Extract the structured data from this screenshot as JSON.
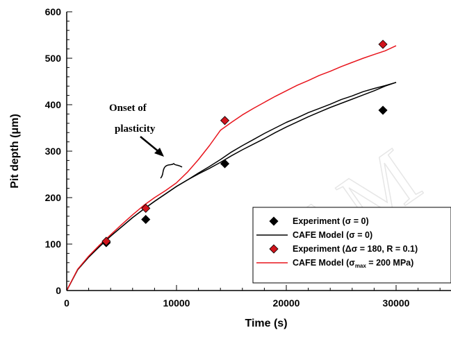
{
  "chart_data": {
    "type": "line",
    "xlabel": "Time  (s)",
    "ylabel": "Pit depth (μm)",
    "xlim": [
      0,
      35000
    ],
    "ylim": [
      0,
      600
    ],
    "x_ticks": [
      0,
      10000,
      20000,
      30000
    ],
    "x_tick_labels": [
      "0",
      "10000",
      "20000",
      "30000"
    ],
    "y_ticks": [
      0,
      100,
      200,
      300,
      400,
      500,
      600
    ],
    "y_tick_labels": [
      "0",
      "100",
      "200",
      "300",
      "400",
      "500",
      "600"
    ],
    "grid": false,
    "legend_position": "bottom-right",
    "annotation": {
      "line1": "Onset of",
      "line2": "plasticity",
      "points_to_x": 10000
    },
    "colors": {
      "black": "#000000",
      "red": "#e8141c",
      "marker_red": "#d0141c"
    },
    "series": [
      {
        "name": "Experiment (σ = 0)",
        "legend_parts": [
          [
            "Experiment (",
            ""
          ],
          [
            "σ",
            ""
          ],
          [
            " = 0)",
            ""
          ]
        ],
        "kind": "scatter",
        "marker": "diamond",
        "color": "#000000",
        "x": [
          3600,
          7200,
          14400,
          28800
        ],
        "y": [
          103,
          153,
          273,
          388
        ]
      },
      {
        "name": "CAFE Model (σ = 0)",
        "legend_parts": [
          [
            "CAFE Model (",
            ""
          ],
          [
            "σ",
            ""
          ],
          [
            " = 0)",
            ""
          ]
        ],
        "kind": "line",
        "color": "#000000",
        "x": [
          0,
          1000,
          2000,
          3000,
          4000,
          5000,
          6000,
          7000,
          8000,
          9000,
          10000,
          11000,
          12000,
          13000,
          14000,
          15000,
          16000,
          17000,
          18000,
          19000,
          20000,
          21000,
          22000,
          23000,
          24000,
          25000,
          26000,
          27000,
          28000,
          29000,
          30000
        ],
        "y": [
          0,
          45,
          72,
          95,
          117,
          137,
          157,
          175,
          192,
          208,
          224,
          238,
          253,
          267,
          282,
          298,
          312,
          325,
          338,
          350,
          362,
          372,
          383,
          392,
          401,
          411,
          419,
          428,
          435,
          441,
          448
        ]
      },
      {
        "name": "CAFE Model (σ = 0) (second trace)",
        "legend_parts": [],
        "kind": "line",
        "color": "#000000",
        "in_legend": false,
        "x": [
          0,
          1000,
          2000,
          3000,
          4000,
          5000,
          6000,
          7000,
          8000,
          9000,
          10000,
          11000,
          12000,
          13000,
          14000,
          15000,
          16000,
          17000,
          18000,
          19000,
          20000,
          21000,
          22000,
          23000,
          24000,
          25000,
          26000,
          27000,
          28000,
          29000,
          30000
        ],
        "y": [
          0,
          45,
          72,
          95,
          117,
          137,
          157,
          175,
          192,
          208,
          224,
          238,
          251,
          263,
          276,
          290,
          303,
          315,
          327,
          340,
          352,
          363,
          374,
          384,
          394,
          403,
          412,
          421,
          430,
          440,
          448
        ]
      },
      {
        "name": "Experiment (Δσ = 180, R = 0.1)",
        "legend_parts": [
          [
            "Experiment (",
            ""
          ],
          [
            "Δσ",
            ""
          ],
          [
            " = 180, R = 0.1)",
            ""
          ]
        ],
        "kind": "scatter",
        "marker": "diamond",
        "color": "#d0141c",
        "x": [
          3600,
          7200,
          14400,
          28800
        ],
        "y": [
          106,
          177,
          366,
          530
        ]
      },
      {
        "name": "CAFE Model (σmax = 200 MPa)",
        "legend_parts": [
          [
            "CAFE Model (",
            ""
          ],
          [
            "σ",
            ""
          ],
          [
            "max",
            "sub"
          ],
          [
            " = 200 MPa)",
            ""
          ]
        ],
        "kind": "line",
        "color": "#e8141c",
        "x": [
          0,
          1000,
          2000,
          3000,
          4000,
          5000,
          6000,
          7000,
          8000,
          9000,
          10000,
          11000,
          12000,
          13000,
          14000,
          15000,
          16000,
          17000,
          18000,
          19000,
          20000,
          21000,
          22000,
          23000,
          24000,
          25000,
          26000,
          27000,
          28000,
          29000,
          30000
        ],
        "y": [
          0,
          46,
          74,
          98,
          120,
          142,
          163,
          183,
          200,
          215,
          232,
          255,
          282,
          312,
          345,
          362,
          378,
          392,
          405,
          418,
          430,
          442,
          452,
          463,
          472,
          482,
          491,
          500,
          508,
          516,
          527
        ]
      }
    ]
  }
}
